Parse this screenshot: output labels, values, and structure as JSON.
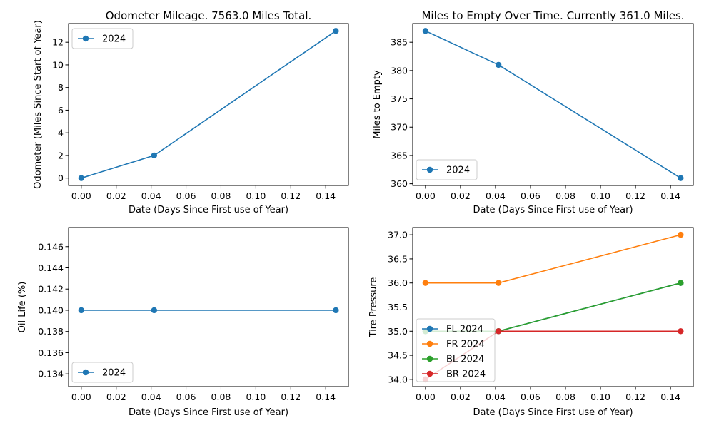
{
  "chart_data": [
    {
      "type": "line",
      "title": "Odometer Mileage. 7563.0 Miles Total.",
      "xlabel": "Date (Days Since First use of Year)",
      "ylabel": "Odometer (Miles Since Start of Year)",
      "xlim": [
        -0.00729,
        0.153
      ],
      "ylim": [
        -0.65,
        13.65
      ],
      "xticks": [
        0.0,
        0.02,
        0.04,
        0.06,
        0.08,
        0.1,
        0.12,
        0.14
      ],
      "xtick_labels": [
        "0.00",
        "0.02",
        "0.04",
        "0.06",
        "0.08",
        "0.10",
        "0.12",
        "0.14"
      ],
      "yticks": [
        0,
        2,
        4,
        6,
        8,
        10,
        12
      ],
      "ytick_labels": [
        "0",
        "2",
        "4",
        "6",
        "8",
        "10",
        "12"
      ],
      "legend_position": "upper-left",
      "series": [
        {
          "name": "2024",
          "color": "#1f77b4",
          "x": [
            0.0,
            0.0417,
            0.1458
          ],
          "y": [
            0,
            2,
            13
          ]
        }
      ]
    },
    {
      "type": "line",
      "title": "Miles to Empty Over Time. Currently 361.0 Miles.",
      "xlabel": "Date (Days Since First use of Year)",
      "ylabel": "Miles to Empty",
      "xlim": [
        -0.00729,
        0.153
      ],
      "ylim": [
        359.7,
        388.3
      ],
      "xticks": [
        0.0,
        0.02,
        0.04,
        0.06,
        0.08,
        0.1,
        0.12,
        0.14
      ],
      "xtick_labels": [
        "0.00",
        "0.02",
        "0.04",
        "0.06",
        "0.08",
        "0.10",
        "0.12",
        "0.14"
      ],
      "yticks": [
        360,
        365,
        370,
        375,
        380,
        385
      ],
      "ytick_labels": [
        "360",
        "365",
        "370",
        "375",
        "380",
        "385"
      ],
      "legend_position": "lower-left",
      "series": [
        {
          "name": "2024",
          "color": "#1f77b4",
          "x": [
            0.0,
            0.0417,
            0.1458
          ],
          "y": [
            387,
            381,
            361
          ]
        }
      ]
    },
    {
      "type": "line",
      "title": "",
      "xlabel": "Date (Days Since First use of Year)",
      "ylabel": "Oil Life (%)",
      "xlim": [
        -0.00729,
        0.153
      ],
      "ylim": [
        0.1328,
        0.1478
      ],
      "xticks": [
        0.0,
        0.02,
        0.04,
        0.06,
        0.08,
        0.1,
        0.12,
        0.14
      ],
      "xtick_labels": [
        "0.00",
        "0.02",
        "0.04",
        "0.06",
        "0.08",
        "0.10",
        "0.12",
        "0.14"
      ],
      "yticks": [
        0.134,
        0.136,
        0.138,
        0.14,
        0.142,
        0.144,
        0.146
      ],
      "ytick_labels": [
        "0.134",
        "0.136",
        "0.138",
        "0.140",
        "0.142",
        "0.144",
        "0.146"
      ],
      "legend_position": "lower-left",
      "series": [
        {
          "name": "2024",
          "color": "#1f77b4",
          "x": [
            0.0,
            0.0417,
            0.1458
          ],
          "y": [
            0.14,
            0.14,
            0.14
          ]
        }
      ]
    },
    {
      "type": "line",
      "title": "",
      "xlabel": "Date (Days Since First use of Year)",
      "ylabel": "Tire Pressure",
      "xlim": [
        -0.00729,
        0.153
      ],
      "ylim": [
        33.85,
        37.15
      ],
      "xticks": [
        0.0,
        0.02,
        0.04,
        0.06,
        0.08,
        0.1,
        0.12,
        0.14
      ],
      "xtick_labels": [
        "0.00",
        "0.02",
        "0.04",
        "0.06",
        "0.08",
        "0.10",
        "0.12",
        "0.14"
      ],
      "yticks": [
        34.0,
        34.5,
        35.0,
        35.5,
        36.0,
        36.5,
        37.0
      ],
      "ytick_labels": [
        "34.0",
        "34.5",
        "35.0",
        "35.5",
        "36.0",
        "36.5",
        "37.0"
      ],
      "legend_position": "lower-left",
      "series": [
        {
          "name": "FL 2024",
          "color": "#1f77b4",
          "x": [
            0.0,
            0.0417,
            0.1458
          ],
          "y": [
            35,
            35,
            36
          ]
        },
        {
          "name": "FR 2024",
          "color": "#ff7f0e",
          "x": [
            0.0,
            0.0417,
            0.1458
          ],
          "y": [
            36,
            36,
            37
          ]
        },
        {
          "name": "BL 2024",
          "color": "#2ca02c",
          "x": [
            0.0,
            0.0417,
            0.1458
          ],
          "y": [
            35,
            35,
            36
          ]
        },
        {
          "name": "BR 2024",
          "color": "#d62728",
          "x": [
            0.0,
            0.0417,
            0.1458
          ],
          "y": [
            34,
            35,
            35
          ]
        }
      ]
    }
  ]
}
